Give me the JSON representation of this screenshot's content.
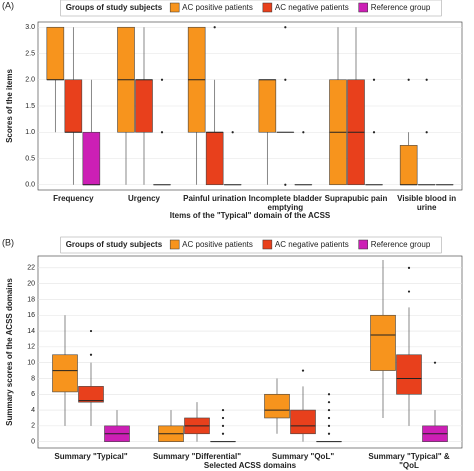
{
  "chart_data": [
    {
      "type": "box",
      "panel_label": "(A)",
      "legend_title": "Groups of study subjects",
      "y_label": "Scores of the items",
      "x_label": "Items of the \"Typical\" domain of the ACSS",
      "categories": [
        "Frequency",
        "Urgency",
        "Painful urination",
        "Incomplete bladder emptying",
        "Suprapubic pain",
        "Visible blood in urine"
      ],
      "ylim": [
        -0.1,
        3.1
      ],
      "yticks": [
        {
          "value": 0,
          "label": "0.0"
        },
        {
          "value": 0.5,
          "label": "0.5"
        },
        {
          "value": 1,
          "label": "1.0"
        },
        {
          "value": 1.5,
          "label": "1.5"
        },
        {
          "value": 2,
          "label": "2.0"
        },
        {
          "value": 2.5,
          "label": "2.5"
        },
        {
          "value": 3,
          "label": "3.0"
        }
      ],
      "grid": true,
      "series": [
        {
          "name": "AC positive patients",
          "color": "#f7941d",
          "values": [
            {
              "min": 1,
              "q1": 2,
              "median": 2,
              "q3": 3,
              "max": 3,
              "outliers": []
            },
            {
              "min": 0,
              "q1": 1,
              "median": 2,
              "q3": 3,
              "max": 3,
              "outliers": []
            },
            {
              "min": 0,
              "q1": 1,
              "median": 2,
              "q3": 3,
              "max": 3,
              "outliers": []
            },
            {
              "min": 0,
              "q1": 1,
              "median": 2,
              "q3": 2,
              "max": 2,
              "outliers": []
            },
            {
              "min": 0,
              "q1": 0,
              "median": 1,
              "q3": 2,
              "max": 3,
              "outliers": []
            },
            {
              "min": 0,
              "q1": 0,
              "median": 0,
              "q3": 0.75,
              "max": 1,
              "outliers": [
                2
              ]
            }
          ]
        },
        {
          "name": "AC negative patients",
          "color": "#e8401c",
          "values": [
            {
              "min": 0,
              "q1": 1,
              "median": 1,
              "q3": 2,
              "max": 3,
              "outliers": []
            },
            {
              "min": 0,
              "q1": 1,
              "median": 2,
              "q3": 2,
              "max": 3,
              "outliers": []
            },
            {
              "min": 0,
              "q1": 0,
              "median": 1,
              "q3": 1,
              "max": 2,
              "outliers": [
                3
              ]
            },
            {
              "min": 1,
              "q1": 1,
              "median": 1,
              "q3": 1,
              "max": 1,
              "outliers": [
                3,
                2,
                0
              ]
            },
            {
              "min": 0,
              "q1": 0,
              "median": 1,
              "q3": 2,
              "max": 3,
              "outliers": []
            },
            {
              "min": 0,
              "q1": 0,
              "median": 0,
              "q3": 0,
              "max": 0,
              "outliers": [
                2,
                1
              ]
            }
          ]
        },
        {
          "name": "Reference group",
          "color": "#cc1fb5",
          "values": [
            {
              "min": 0,
              "q1": 0,
              "median": 0,
              "q3": 1,
              "max": 2,
              "outliers": []
            },
            {
              "min": 0,
              "q1": 0,
              "median": 0,
              "q3": 0,
              "max": 0,
              "outliers": [
                2,
                1
              ]
            },
            {
              "min": 0,
              "q1": 0,
              "median": 0,
              "q3": 0,
              "max": 0,
              "outliers": [
                1
              ]
            },
            {
              "min": 0,
              "q1": 0,
              "median": 0,
              "q3": 0,
              "max": 0,
              "outliers": [
                1
              ]
            },
            {
              "min": 0,
              "q1": 0,
              "median": 0,
              "q3": 0,
              "max": 0,
              "outliers": [
                2,
                1
              ]
            },
            {
              "min": 0,
              "q1": 0,
              "median": 0,
              "q3": 0,
              "max": 0,
              "outliers": []
            }
          ]
        }
      ]
    },
    {
      "type": "box",
      "panel_label": "(B)",
      "legend_title": "Groups of study subjects",
      "y_label": "Summary scores of the ACSS domains",
      "x_label": "Selected ACSS domains",
      "categories": [
        "Summary \"Typical\"",
        "Summary \"Differential\"",
        "Summary \"QoL\"",
        "Summary \"Typical\" & \"QoL"
      ],
      "ylim": [
        -0.8,
        23.5
      ],
      "yticks": [
        0,
        2,
        4,
        6,
        8,
        10,
        12,
        14,
        16,
        18,
        20,
        22
      ],
      "grid": true,
      "series": [
        {
          "name": "AC positive patients",
          "color": "#f7941d",
          "values": [
            {
              "min": 2,
              "q1": 6.3,
              "median": 9,
              "q3": 11,
              "max": 16,
              "outliers": []
            },
            {
              "min": 0,
              "q1": 0,
              "median": 1,
              "q3": 2,
              "max": 4,
              "outliers": []
            },
            {
              "min": 1,
              "q1": 3,
              "median": 4,
              "q3": 6,
              "max": 8,
              "outliers": []
            },
            {
              "min": 3,
              "q1": 9,
              "median": 13.5,
              "q3": 16,
              "max": 23,
              "outliers": []
            }
          ]
        },
        {
          "name": "AC negative patients",
          "color": "#e8401c",
          "values": [
            {
              "min": 2,
              "q1": 5,
              "median": 5.2,
              "q3": 7,
              "max": 10,
              "outliers": [
                11,
                14
              ]
            },
            {
              "min": 0,
              "q1": 1,
              "median": 2,
              "q3": 3,
              "max": 5,
              "outliers": []
            },
            {
              "min": 0,
              "q1": 1,
              "median": 2,
              "q3": 4,
              "max": 7,
              "outliers": [
                9
              ]
            },
            {
              "min": 2,
              "q1": 6,
              "median": 8,
              "q3": 11,
              "max": 17,
              "outliers": [
                19,
                22
              ]
            }
          ]
        },
        {
          "name": "Reference group",
          "color": "#cc1fb5",
          "values": [
            {
              "min": 0,
              "q1": 0,
              "median": 1,
              "q3": 2,
              "max": 4,
              "outliers": []
            },
            {
              "min": 0,
              "q1": 0,
              "median": 0,
              "q3": 0,
              "max": 0,
              "outliers": [
                1,
                2,
                3,
                4
              ]
            },
            {
              "min": 0,
              "q1": 0,
              "median": 0,
              "q3": 0,
              "max": 0,
              "outliers": [
                1,
                2,
                3,
                4,
                5,
                6
              ]
            },
            {
              "min": 0,
              "q1": 0,
              "median": 1,
              "q3": 2,
              "max": 4,
              "outliers": [
                10
              ]
            }
          ]
        }
      ]
    }
  ]
}
